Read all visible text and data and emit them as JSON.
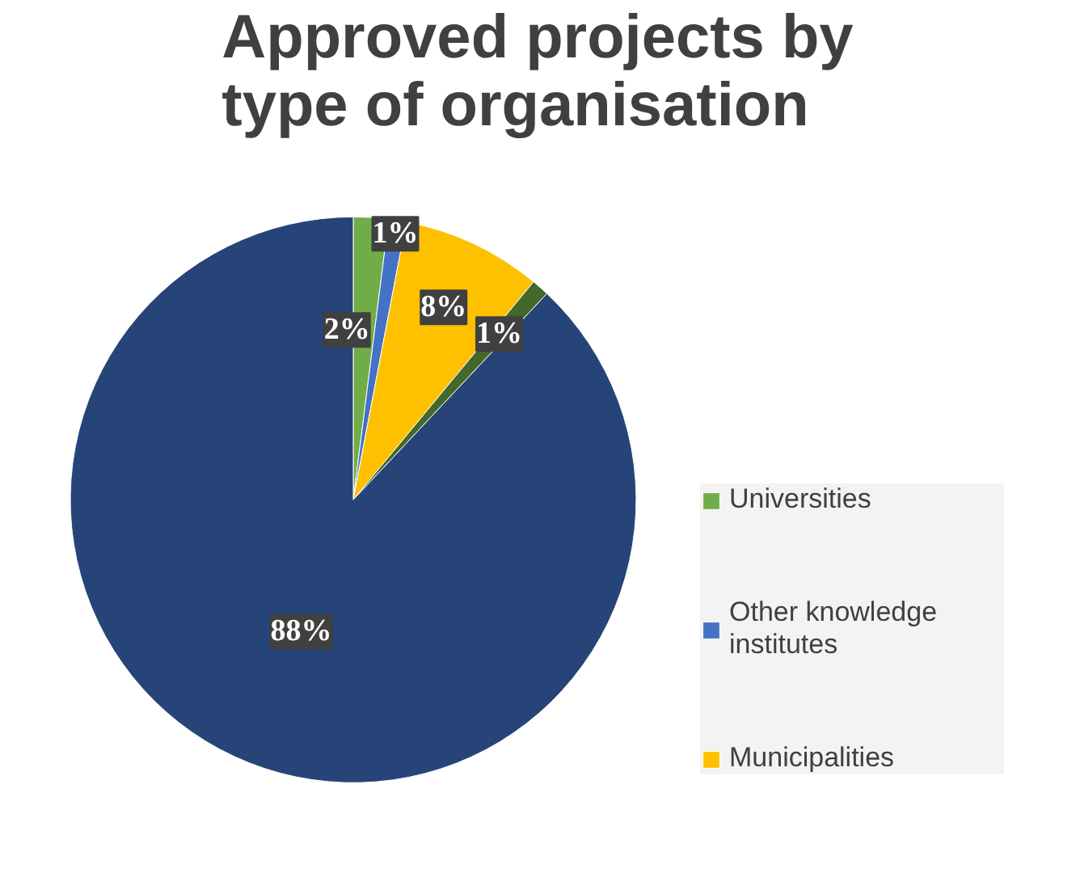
{
  "chart_data": {
    "type": "pie",
    "title": "Approved projects by type of organisation",
    "categories": [
      "Universities",
      "Other knowledge institutes",
      "Municipalities",
      null,
      null
    ],
    "values": [
      2,
      1,
      8,
      1,
      88
    ],
    "colors": [
      "#70ad47",
      "#4472c4",
      "#ffc000",
      "#43682b",
      "#264478"
    ],
    "value_labels": [
      "2%",
      "1%",
      "8%",
      "1%",
      "88%"
    ],
    "legend": "right"
  }
}
